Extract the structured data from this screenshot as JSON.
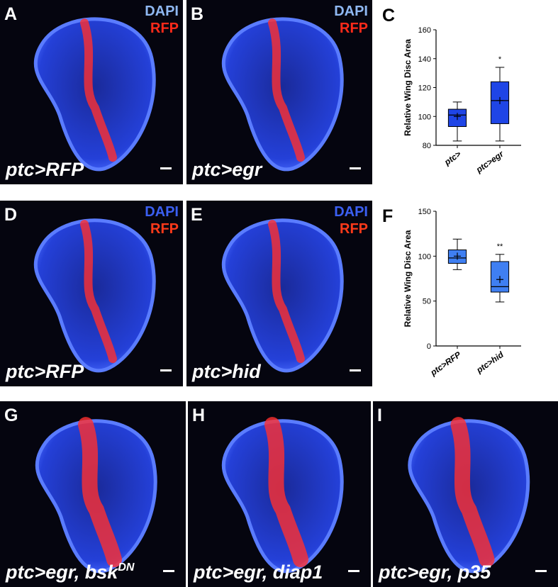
{
  "panels": [
    {
      "label": "A",
      "stains": [
        "DAPI",
        "RFP"
      ],
      "stain_colors": [
        "#8fb8f2",
        "#ff2a1a"
      ],
      "genotype": "ptc>RFP"
    },
    {
      "label": "B",
      "stains": [
        "DAPI",
        "RFP"
      ],
      "stain_colors": [
        "#8fb8f2",
        "#ff2a1a"
      ],
      "genotype": "ptc>egr"
    },
    {
      "label": "D",
      "stains": [
        "DAPI",
        "RFP"
      ],
      "stain_colors": [
        "#3b5ff2",
        "#ff3a1a"
      ],
      "genotype": "ptc>RFP"
    },
    {
      "label": "E",
      "stains": [
        "DAPI",
        "RFP"
      ],
      "stain_colors": [
        "#3b5ff2",
        "#ff3a1a"
      ],
      "genotype": "ptc>hid"
    },
    {
      "label": "G",
      "genotype": "ptc>egr, bsk",
      "superscript": "DN"
    },
    {
      "label": "H",
      "genotype": "ptc>egr, diap1"
    },
    {
      "label": "I",
      "genotype": "ptc>egr, p35"
    }
  ],
  "chart_data": [
    {
      "type": "box",
      "label": "C",
      "ylabel": "Relative Wing Disc Area",
      "color": "#1f45e6",
      "categories": [
        "ptc>",
        "ptc>egr"
      ],
      "min": [
        83,
        83
      ],
      "q1": [
        93,
        95
      ],
      "median": [
        101,
        111
      ],
      "q3": [
        105,
        124
      ],
      "max": [
        110,
        134
      ],
      "mean": [
        100,
        111
      ],
      "annotations": [
        null,
        "*"
      ],
      "ylim": [
        80,
        160
      ],
      "yticks": [
        80,
        100,
        120,
        140,
        160
      ]
    },
    {
      "type": "box",
      "label": "F",
      "ylabel": "Relative Wing Disc Area",
      "color": "#3f7ff2",
      "categories": [
        "ptc>RFP",
        "ptc>hid"
      ],
      "min": [
        85,
        49
      ],
      "q1": [
        92,
        60
      ],
      "median": [
        98,
        66
      ],
      "q3": [
        107,
        94
      ],
      "max": [
        119,
        102
      ],
      "mean": [
        100,
        74
      ],
      "annotations": [
        null,
        "**"
      ],
      "ylim": [
        0,
        150
      ],
      "yticks": [
        0,
        50,
        100,
        150
      ]
    }
  ]
}
